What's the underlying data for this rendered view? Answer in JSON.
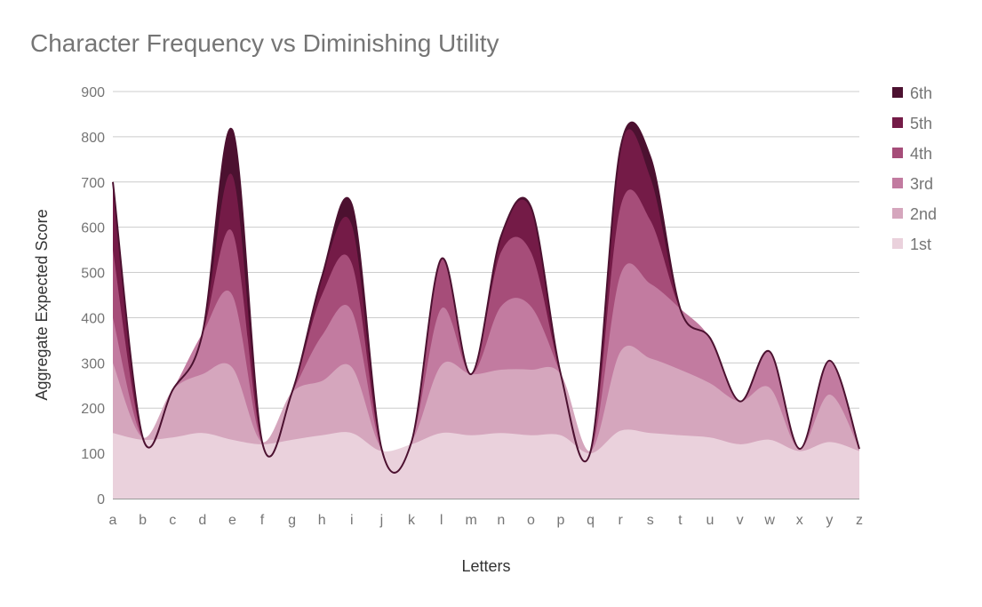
{
  "chart_data": {
    "type": "area",
    "stacked": true,
    "title": "Character Frequency vs Diminishing Utility",
    "xlabel": "Letters",
    "ylabel": "Aggregate Expected Score",
    "ylim": [
      0,
      900
    ],
    "yticks": [
      0,
      100,
      200,
      300,
      400,
      500,
      600,
      700,
      800,
      900
    ],
    "grid": true,
    "legend_position": "right",
    "categories": [
      "a",
      "b",
      "c",
      "d",
      "e",
      "f",
      "g",
      "h",
      "i",
      "j",
      "k",
      "l",
      "m",
      "n",
      "o",
      "p",
      "q",
      "r",
      "s",
      "t",
      "u",
      "v",
      "w",
      "x",
      "y",
      "z"
    ],
    "series": [
      {
        "name": "1st",
        "color": "#ead1dc",
        "values": [
          145,
          130,
          135,
          145,
          130,
          120,
          130,
          140,
          145,
          105,
          120,
          145,
          140,
          145,
          140,
          140,
          100,
          150,
          145,
          140,
          135,
          120,
          130,
          105,
          125,
          105
        ]
      },
      {
        "name": "2nd",
        "color": "#d5a6bd",
        "values": [
          155,
          5,
          105,
          130,
          160,
          5,
          105,
          120,
          145,
          5,
          5,
          150,
          135,
          140,
          145,
          135,
          5,
          175,
          165,
          145,
          120,
          95,
          115,
          5,
          105,
          5
        ]
      },
      {
        "name": "3rd",
        "color": "#c27ba0",
        "values": [
          100,
          0,
          0,
          90,
          160,
          0,
          0,
          100,
          125,
          0,
          0,
          125,
          0,
          140,
          140,
          0,
          0,
          170,
          165,
          135,
          100,
          0,
          80,
          0,
          75,
          0
        ]
      },
      {
        "name": "4th",
        "color": "#a64d79",
        "values": [
          150,
          0,
          0,
          0,
          140,
          0,
          0,
          90,
          105,
          0,
          0,
          110,
          0,
          120,
          120,
          0,
          0,
          150,
          140,
          0,
          0,
          0,
          0,
          0,
          0,
          0
        ]
      },
      {
        "name": "5th",
        "color": "#741b47",
        "values": [
          140,
          0,
          0,
          0,
          125,
          0,
          0,
          40,
          85,
          0,
          0,
          0,
          0,
          35,
          95,
          0,
          0,
          130,
          95,
          0,
          0,
          0,
          0,
          0,
          0,
          0
        ]
      },
      {
        "name": "6th",
        "color": "#4c1130",
        "values": [
          10,
          0,
          0,
          0,
          100,
          0,
          0,
          0,
          45,
          0,
          0,
          0,
          0,
          0,
          5,
          0,
          0,
          0,
          45,
          0,
          0,
          0,
          0,
          0,
          0,
          0
        ]
      }
    ]
  }
}
